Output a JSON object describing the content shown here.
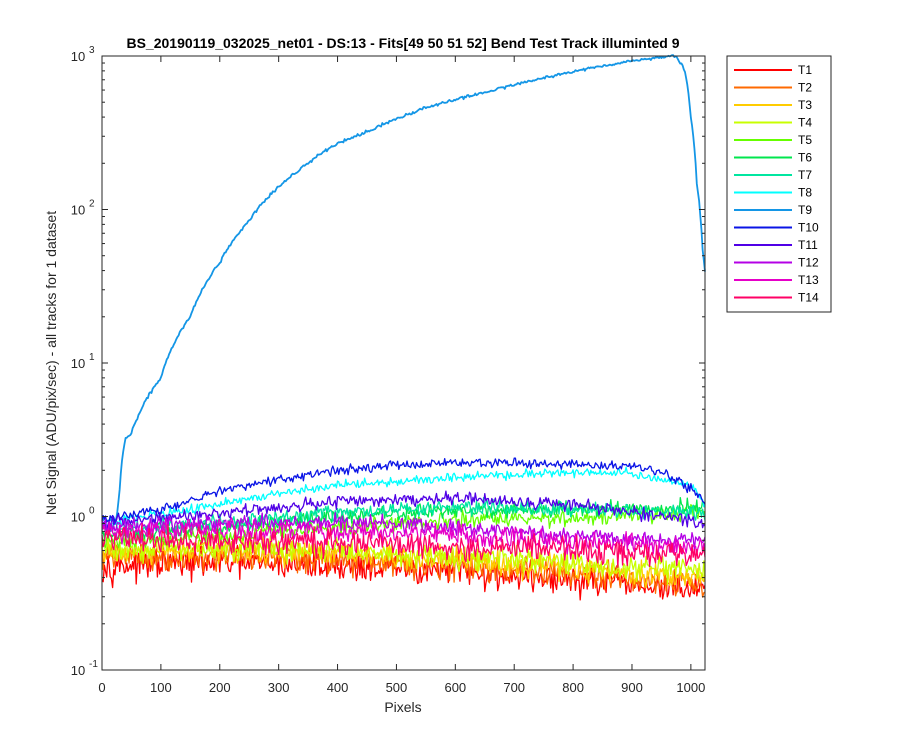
{
  "chart_data": {
    "type": "line",
    "title": "BS_20190119_032025_net01 - DS:13 - Fits[49  50  51  52]   Bend Test         Track illuminted 9",
    "xlabel": "Pixels",
    "ylabel": "Net Signal (ADU/pix/sec) - all tracks for 1 dataset",
    "y_scale": "log",
    "xlim": [
      0,
      1024
    ],
    "ylim": [
      0.1,
      1000
    ],
    "x_ticks": [
      0,
      100,
      200,
      300,
      400,
      500,
      600,
      700,
      800,
      900,
      1000
    ],
    "y_ticks": [
      {
        "value": 0.1,
        "mantissa": "10",
        "exponent": "-1"
      },
      {
        "value": 1,
        "mantissa": "10",
        "exponent": "0"
      },
      {
        "value": 10,
        "mantissa": "10",
        "exponent": "1"
      },
      {
        "value": 100,
        "mantissa": "10",
        "exponent": "2"
      },
      {
        "value": 1000,
        "mantissa": "10",
        "exponent": "3"
      }
    ],
    "grid": false,
    "legend_position": "outside-right",
    "series": [
      {
        "name": "T1",
        "color": "#ff0000",
        "noise": 0.1,
        "x": [
          0,
          200,
          400,
          600,
          800,
          1024
        ],
        "y": [
          0.48,
          0.5,
          0.48,
          0.44,
          0.38,
          0.33
        ]
      },
      {
        "name": "T2",
        "color": "#ff6a00",
        "noise": 0.09,
        "x": [
          0,
          200,
          400,
          600,
          800,
          1024
        ],
        "y": [
          0.55,
          0.55,
          0.53,
          0.48,
          0.42,
          0.36
        ]
      },
      {
        "name": "T3",
        "color": "#ffcc00",
        "noise": 0.08,
        "x": [
          0,
          200,
          400,
          600,
          800,
          1024
        ],
        "y": [
          0.58,
          0.6,
          0.57,
          0.52,
          0.46,
          0.4
        ]
      },
      {
        "name": "T4",
        "color": "#c8ff00",
        "noise": 0.08,
        "x": [
          0,
          200,
          400,
          600,
          800,
          1024
        ],
        "y": [
          0.62,
          0.62,
          0.6,
          0.55,
          0.49,
          0.43
        ]
      },
      {
        "name": "T5",
        "color": "#66ff00",
        "noise": 0.05,
        "x": [
          0,
          200,
          400,
          600,
          800,
          1024
        ],
        "y": [
          0.68,
          0.75,
          0.85,
          0.95,
          0.98,
          1.05
        ]
      },
      {
        "name": "T6",
        "color": "#00e64d",
        "noise": 0.05,
        "x": [
          0,
          200,
          400,
          600,
          800,
          1024
        ],
        "y": [
          0.75,
          0.85,
          1.0,
          1.1,
          1.1,
          1.15
        ]
      },
      {
        "name": "T7",
        "color": "#00e6a0",
        "noise": 0.05,
        "x": [
          0,
          200,
          400,
          600,
          800,
          1024
        ],
        "y": [
          0.82,
          0.9,
          1.05,
          1.15,
          1.12,
          1.05
        ]
      },
      {
        "name": "T8",
        "color": "#00ffff",
        "noise": 0.03,
        "x": [
          0,
          200,
          400,
          600,
          800,
          900,
          1000,
          1024
        ],
        "y": [
          0.9,
          1.2,
          1.6,
          1.8,
          1.95,
          1.9,
          1.6,
          1.2
        ]
      },
      {
        "name": "T9",
        "color": "#1496e6",
        "noise": 0.01,
        "x": [
          0,
          25,
          30,
          35,
          40,
          50,
          100,
          150,
          200,
          250,
          300,
          350,
          400,
          450,
          500,
          550,
          600,
          650,
          700,
          750,
          800,
          850,
          900,
          950,
          975,
          990,
          1000,
          1010,
          1020,
          1024
        ],
        "y": [
          0.95,
          0.95,
          1.5,
          2.5,
          3.2,
          3.5,
          8,
          20,
          45,
          85,
          140,
          200,
          270,
          320,
          390,
          460,
          520,
          580,
          650,
          720,
          790,
          860,
          930,
          980,
          1000,
          800,
          400,
          150,
          55,
          40
        ]
      },
      {
        "name": "T10",
        "color": "#0a14e6",
        "noise": 0.03,
        "x": [
          0,
          100,
          200,
          300,
          400,
          500,
          600,
          700,
          800,
          900,
          950,
          1000,
          1024
        ],
        "y": [
          0.95,
          1.1,
          1.45,
          1.75,
          2.0,
          2.15,
          2.25,
          2.2,
          2.2,
          2.1,
          1.95,
          1.5,
          1.25
        ]
      },
      {
        "name": "T11",
        "color": "#5000e6",
        "noise": 0.04,
        "x": [
          0,
          200,
          400,
          600,
          800,
          1024
        ],
        "y": [
          0.9,
          1.05,
          1.25,
          1.3,
          1.2,
          0.9
        ]
      },
      {
        "name": "T12",
        "color": "#b400e6",
        "noise": 0.05,
        "x": [
          0,
          200,
          400,
          600,
          800,
          1024
        ],
        "y": [
          0.85,
          0.9,
          0.92,
          0.85,
          0.75,
          0.68
        ]
      },
      {
        "name": "T13",
        "color": "#e600c8",
        "noise": 0.07,
        "x": [
          0,
          200,
          400,
          600,
          800,
          1024
        ],
        "y": [
          0.8,
          0.82,
          0.8,
          0.75,
          0.68,
          0.62
        ]
      },
      {
        "name": "T14",
        "color": "#ff0066",
        "noise": 0.08,
        "x": [
          0,
          200,
          400,
          600,
          800,
          1024
        ],
        "y": [
          0.72,
          0.7,
          0.68,
          0.64,
          0.6,
          0.55
        ]
      }
    ]
  }
}
